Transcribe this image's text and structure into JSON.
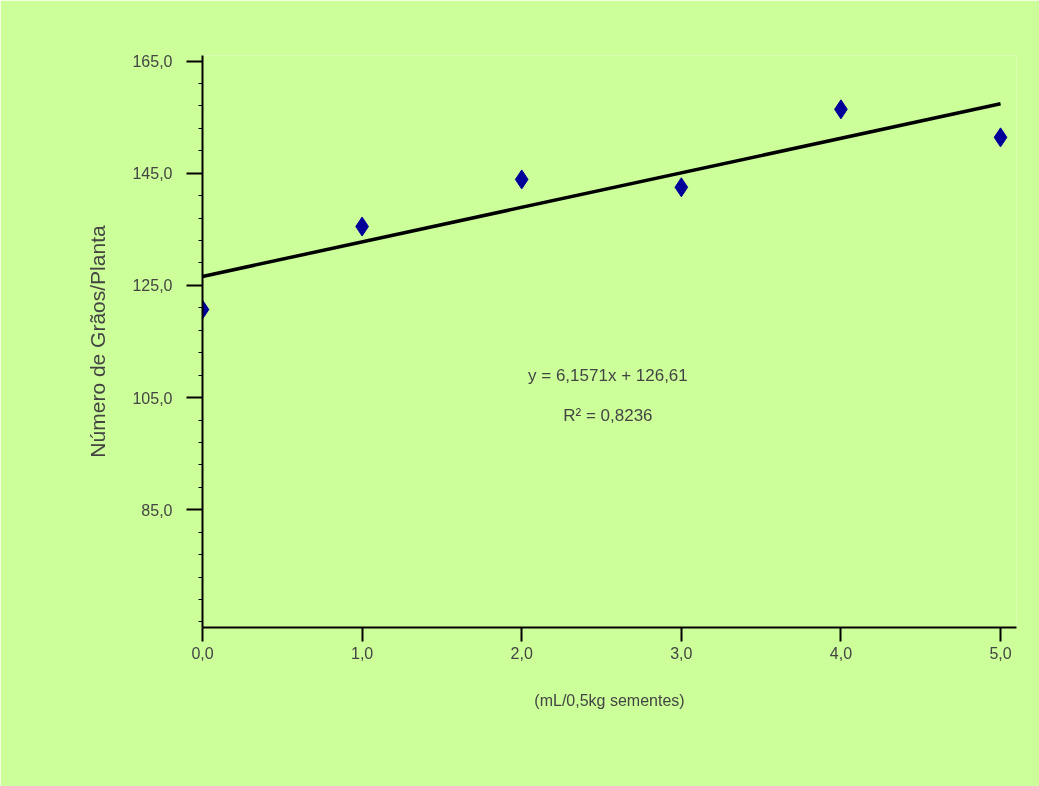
{
  "chart_data": {
    "type": "scatter",
    "xlabel": "(mL/0,5kg sementes)",
    "ylabel": "Número de Grãos/Planta",
    "x": [
      0,
      1,
      2,
      3,
      4,
      5
    ],
    "series": [
      {
        "color": "#000099",
        "marker": "diamond",
        "values": [
          120.7,
          135.5,
          143.9,
          142.5,
          156.4,
          151.4
        ]
      },
      {
        "type": "line",
        "color": "#000000",
        "x": [
          0,
          5
        ],
        "values": [
          126.6,
          157.4
        ]
      }
    ],
    "annotations": [
      "y = 6,1571x + 126,61",
      "R² = 0,8236"
    ],
    "xlim": [
      0,
      5.1
    ],
    "ylim": [
      64,
      166
    ],
    "xticks": [
      {
        "value": 0,
        "label": "0,0"
      },
      {
        "value": 1,
        "label": "1,0"
      },
      {
        "value": 2,
        "label": "2,0"
      },
      {
        "value": 3,
        "label": "3,0"
      },
      {
        "value": 4,
        "label": "4,0"
      },
      {
        "value": 5,
        "label": "5,0"
      }
    ],
    "yticks": [
      {
        "value": 85,
        "label": "85,0"
      },
      {
        "value": 105,
        "label": "105,0"
      },
      {
        "value": 125,
        "label": "125,0"
      },
      {
        "value": 145,
        "label": "145,0"
      },
      {
        "value": 165,
        "label": "165,0"
      }
    ],
    "grid": false
  }
}
